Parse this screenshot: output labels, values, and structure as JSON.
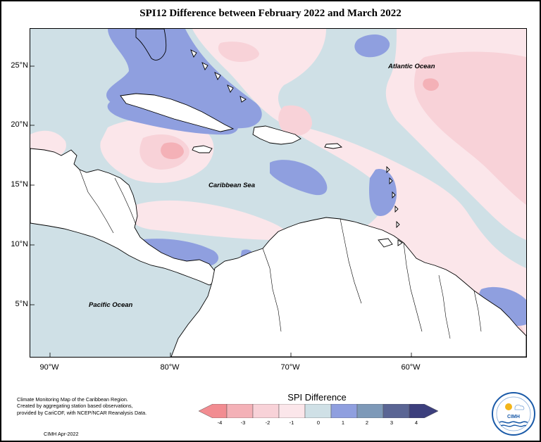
{
  "map": {
    "title": "SPI12 Difference between February 2022 and March 2022",
    "lat_labels": [
      "25°N",
      "20°N",
      "15°N",
      "10°N",
      "5°N"
    ],
    "lon_labels": [
      "90°W",
      "80°W",
      "70°W",
      "60°W"
    ],
    "regions": {
      "atlantic": "Atlantic Ocean",
      "caribbean": "Caribbean Sea",
      "pacific": "Pacific Ocean"
    },
    "extent": {
      "lon": [
        -92,
        -51
      ],
      "lat": [
        1,
        28.5
      ]
    }
  },
  "legend": {
    "title": "SPI Difference",
    "ticks": [
      "-4",
      "-3",
      "-2",
      "-1",
      "0",
      "1",
      "2",
      "3",
      "4"
    ],
    "colors": [
      "#f28c91",
      "#f4b1b7",
      "#f8d2d8",
      "#fbe6ea",
      "#cfe0e6",
      "#8f9fdf",
      "#7d99b8",
      "#5a6594"
    ]
  },
  "footnote": {
    "lines": [
      "Climate Monitoring Map of the Caribbean Region.",
      "Created by aggregating station based observations,",
      "provided by CariCOF, with NCEP/NCAR Reanalysis Data."
    ],
    "credit": "CIMH Apr-2022"
  },
  "logo": {
    "name": "CIMH"
  }
}
